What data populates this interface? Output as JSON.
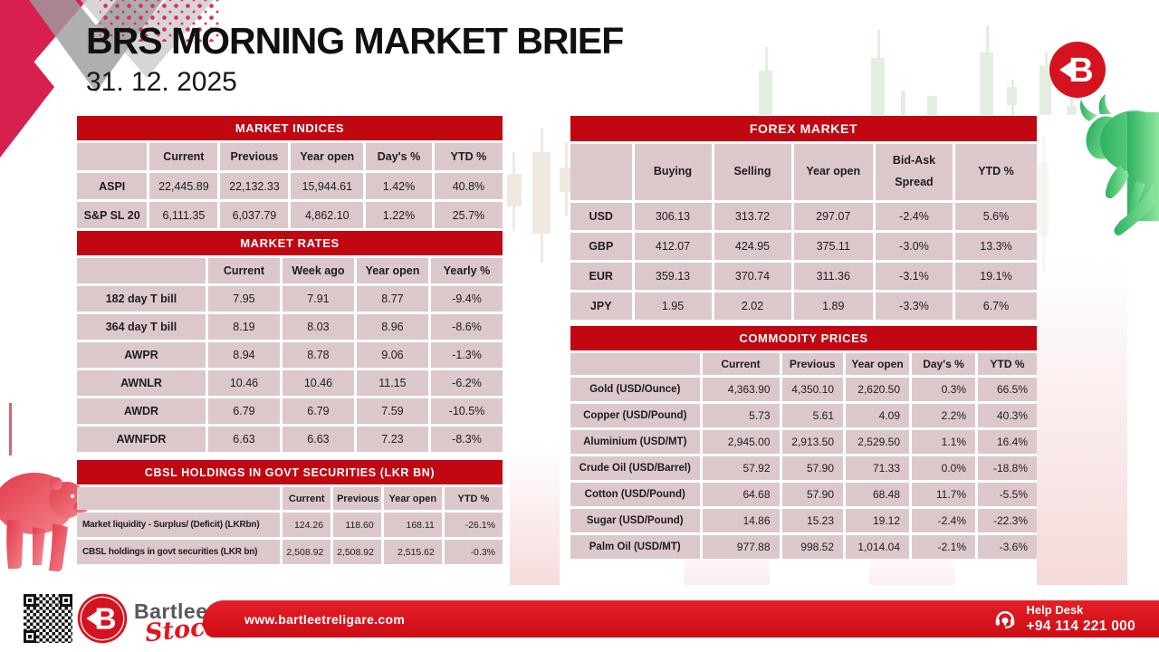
{
  "page": {
    "title": "BRS MORNING MARKET BRIEF",
    "date": "31. 12. 2025",
    "logo_letter": "B"
  },
  "tables": {
    "market_indices": {
      "title": "MARKET INDICES",
      "columns": [
        "",
        "Current",
        "Previous",
        "Year open",
        "Day's %",
        "YTD %"
      ],
      "rows": [
        {
          "label": "ASPI",
          "values": [
            "22,445.89",
            "22,132.33",
            "15,944.61",
            "1.42%",
            "40.8%"
          ]
        },
        {
          "label": "S&P SL 20",
          "values": [
            "6,111.35",
            "6,037.79",
            "4,862.10",
            "1.22%",
            "25.7%"
          ]
        }
      ]
    },
    "market_rates": {
      "title": "MARKET RATES",
      "columns": [
        "",
        "Current",
        "Week ago",
        "Year open",
        "Yearly %"
      ],
      "rows": [
        {
          "label": "182 day T bill",
          "values": [
            "7.95",
            "7.91",
            "8.77",
            "-9.4%"
          ]
        },
        {
          "label": "364 day T bill",
          "values": [
            "8.19",
            "8.03",
            "8.96",
            "-8.6%"
          ]
        },
        {
          "label": "AWPR",
          "values": [
            "8.94",
            "8.78",
            "9.06",
            "-1.3%"
          ]
        },
        {
          "label": "AWNLR",
          "values": [
            "10.46",
            "10.46",
            "11.15",
            "-6.2%"
          ]
        },
        {
          "label": "AWDR",
          "values": [
            "6.79",
            "6.79",
            "7.59",
            "-10.5%"
          ]
        },
        {
          "label": "AWNFDR",
          "values": [
            "6.63",
            "6.63",
            "7.23",
            "-8.3%"
          ]
        }
      ]
    },
    "cbsl_holdings": {
      "title": "CBSL HOLDINGS IN GOVT SECURITIES (LKR BN)",
      "columns": [
        "",
        "Current",
        "Previous",
        "Year open",
        "YTD %"
      ],
      "rows": [
        {
          "label": "Market liquidity - Surplus/ (Deficit) (LKRbn)",
          "values": [
            "124.26",
            "118.60",
            "168.11",
            "-26.1%"
          ]
        },
        {
          "label": "CBSL holdings in govt securities (LKR bn)",
          "values": [
            "2,508.92",
            "2,508.92",
            "2,515.62",
            "-0.3%"
          ]
        }
      ]
    },
    "forex": {
      "title": "FOREX MARKET",
      "columns": [
        "",
        "Buying",
        "Selling",
        "Year open",
        "Bid-Ask Spread",
        "YTD %"
      ],
      "rows": [
        {
          "label": "USD",
          "values": [
            "306.13",
            "313.72",
            "297.07",
            "-2.4%",
            "5.6%"
          ]
        },
        {
          "label": "GBP",
          "values": [
            "412.07",
            "424.95",
            "375.11",
            "-3.0%",
            "13.3%"
          ]
        },
        {
          "label": "EUR",
          "values": [
            "359.13",
            "370.74",
            "311.36",
            "-3.1%",
            "19.1%"
          ]
        },
        {
          "label": "JPY",
          "values": [
            "1.95",
            "2.02",
            "1.89",
            "-3.3%",
            "6.7%"
          ]
        }
      ]
    },
    "commodities": {
      "title": "COMMODITY PRICES",
      "columns": [
        "",
        "Current",
        "Previous",
        "Year open",
        "Day's %",
        "YTD %"
      ],
      "rows": [
        {
          "label": "Gold (USD/Ounce)",
          "values": [
            "4,363.90",
            "4,350.10",
            "2,620.50",
            "0.3%",
            "66.5%"
          ]
        },
        {
          "label": "Copper (USD/Pound)",
          "values": [
            "5.73",
            "5.61",
            "4.09",
            "2.2%",
            "40.3%"
          ]
        },
        {
          "label": "Aluminium (USD/MT)",
          "values": [
            "2,945.00",
            "2,913.50",
            "2,529.50",
            "1.1%",
            "16.4%"
          ]
        },
        {
          "label": "Crude Oil (USD/Barrel)",
          "values": [
            "57.92",
            "57.90",
            "71.33",
            "0.0%",
            "-18.8%"
          ]
        },
        {
          "label": "Cotton (USD/Pound)",
          "values": [
            "64.68",
            "57.90",
            "68.48",
            "11.7%",
            "-5.5%"
          ]
        },
        {
          "label": "Sugar (USD/Pound)",
          "values": [
            "14.86",
            "15.23",
            "19.12",
            "-2.4%",
            "-22.3%"
          ]
        },
        {
          "label": "Palm Oil (USD/MT)",
          "values": [
            "977.88",
            "998.52",
            "1,014.04",
            "-2.1%",
            "-3.6%"
          ]
        }
      ]
    }
  },
  "footer": {
    "brand": "Bartleet",
    "brand_script": "Stock",
    "website": "www.bartleetreligare.com",
    "help_desk": {
      "label": "Help Desk",
      "phone": "+94 114 221 000"
    }
  },
  "colors": {
    "table_header_red": "#c00712",
    "cell_pink": "#dcc8ca",
    "ribbon_red": "#d8141d",
    "logo_red": "#d5131e",
    "bull_green": "#4fc276",
    "bear_red": "#e8505c"
  }
}
